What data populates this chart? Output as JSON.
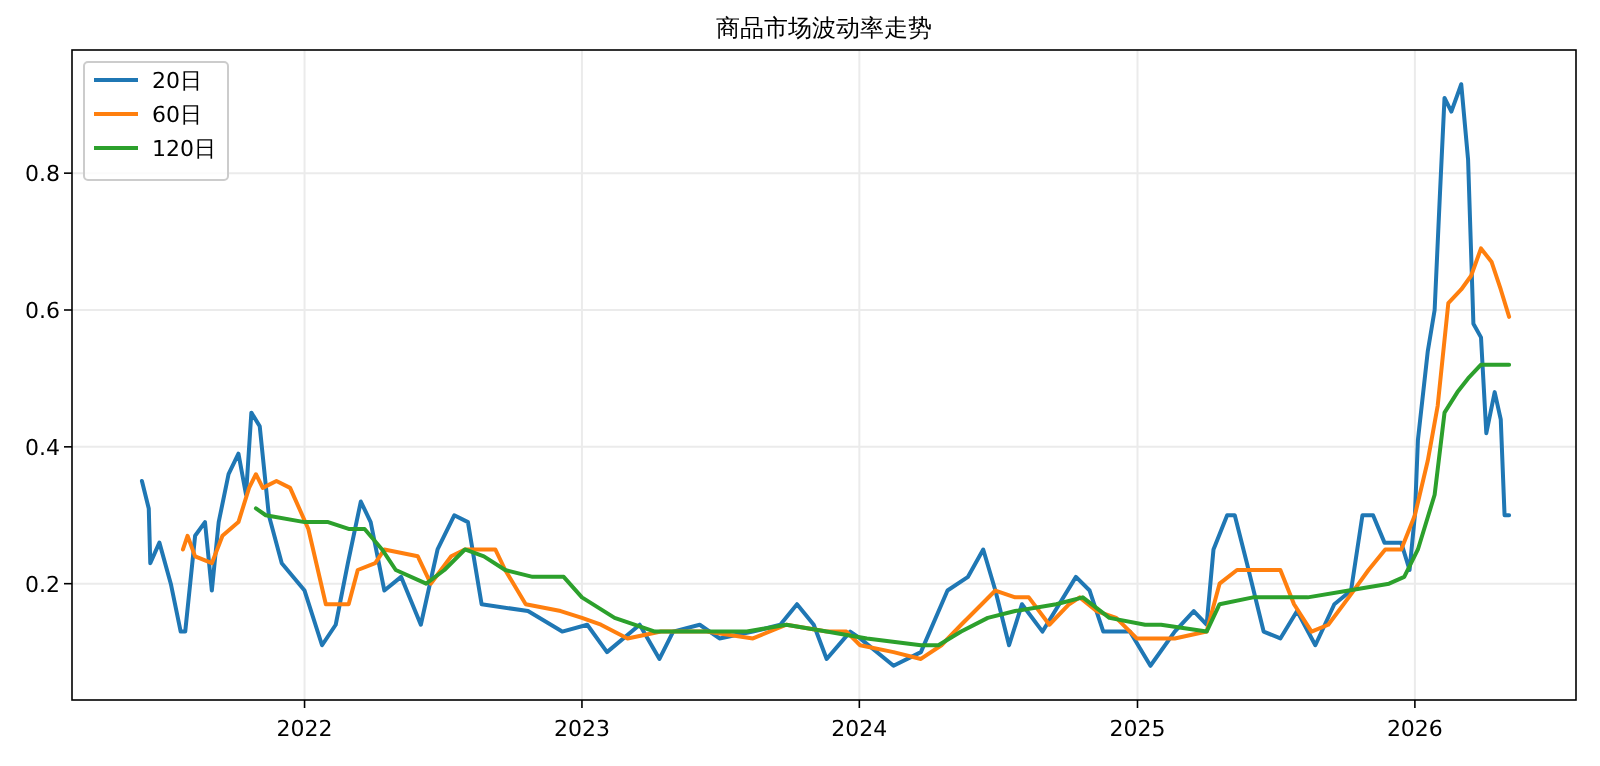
{
  "chart_data": {
    "type": "line",
    "title": "商品市场波动率走势",
    "xlim": [
      "2021-03-01",
      "2026-08-01"
    ],
    "ylim": [
      0.03,
      0.98
    ],
    "xticks": [
      {
        "value": "2022-01-01",
        "label": "2022"
      },
      {
        "value": "2023-01-01",
        "label": "2023"
      },
      {
        "value": "2024-01-01",
        "label": "2024"
      },
      {
        "value": "2025-01-01",
        "label": "2025"
      },
      {
        "value": "2026-01-01",
        "label": "2026"
      }
    ],
    "yticks": [
      0.2,
      0.4,
      0.6,
      0.8
    ],
    "grid": true,
    "legend": "top left",
    "line_style": "solid",
    "marker": "none",
    "series": [
      {
        "name": "20日",
        "color": "#1f77b4",
        "x": [
          "2021-06-01",
          "2021-06-10",
          "2021-06-12",
          "2021-06-24",
          "2021-07-09",
          "2021-07-22",
          "2021-07-28",
          "2021-08-10",
          "2021-08-23",
          "2021-09-01",
          "2021-09-10",
          "2021-09-23",
          "2021-10-06",
          "2021-10-16",
          "2021-10-23",
          "2021-11-03",
          "2021-11-15",
          "2021-12-02",
          "2022-01-01",
          "2022-01-24",
          "2022-02-11",
          "2022-02-27",
          "2022-03-16",
          "2022-03-29",
          "2022-04-16",
          "2022-05-08",
          "2022-06-03",
          "2022-06-25",
          "2022-07-17",
          "2022-08-04",
          "2022-08-22",
          "2022-10-22",
          "2022-12-06",
          "2023-01-08",
          "2023-02-03",
          "2023-03-18",
          "2023-04-13",
          "2023-05-01",
          "2023-06-05",
          "2023-07-01",
          "2023-08-14",
          "2023-09-19",
          "2023-10-11",
          "2023-11-02",
          "2023-11-19",
          "2023-12-20",
          "2024-01-02",
          "2024-02-15",
          "2024-03-22",
          "2024-04-26",
          "2024-05-23",
          "2024-06-12",
          "2024-06-28",
          "2024-07-16",
          "2024-08-02",
          "2024-08-29",
          "2024-10-12",
          "2024-10-30",
          "2024-11-17",
          "2024-12-22",
          "2025-01-18",
          "2025-02-19",
          "2025-03-16",
          "2025-04-02",
          "2025-04-11",
          "2025-04-29",
          "2025-05-09",
          "2025-05-25",
          "2025-06-16",
          "2025-07-08",
          "2025-07-30",
          "2025-08-23",
          "2025-09-17",
          "2025-10-09",
          "2025-10-24",
          "2025-11-07",
          "2025-11-22",
          "2025-12-14",
          "2025-12-25",
          "2026-01-01",
          "2026-01-05",
          "2026-01-18",
          "2026-01-27",
          "2026-02-03",
          "2026-02-09",
          "2026-02-18",
          "2026-03-03",
          "2026-03-12",
          "2026-03-19",
          "2026-03-29",
          "2026-04-05",
          "2026-04-16",
          "2026-04-24",
          "2026-04-29",
          "2026-05-05"
        ],
        "values": [
          0.35,
          0.31,
          0.23,
          0.26,
          0.2,
          0.13,
          0.13,
          0.27,
          0.29,
          0.19,
          0.29,
          0.36,
          0.39,
          0.33,
          0.45,
          0.43,
          0.3,
          0.23,
          0.19,
          0.11,
          0.14,
          0.23,
          0.32,
          0.29,
          0.19,
          0.21,
          0.14,
          0.25,
          0.3,
          0.29,
          0.17,
          0.16,
          0.13,
          0.14,
          0.1,
          0.14,
          0.09,
          0.13,
          0.14,
          0.12,
          0.13,
          0.14,
          0.17,
          0.14,
          0.09,
          0.13,
          0.12,
          0.08,
          0.1,
          0.19,
          0.21,
          0.25,
          0.19,
          0.11,
          0.17,
          0.13,
          0.21,
          0.19,
          0.13,
          0.13,
          0.08,
          0.13,
          0.16,
          0.14,
          0.25,
          0.3,
          0.3,
          0.23,
          0.13,
          0.12,
          0.16,
          0.11,
          0.17,
          0.19,
          0.3,
          0.3,
          0.26,
          0.26,
          0.22,
          0.3,
          0.41,
          0.54,
          0.6,
          0.77,
          0.91,
          0.89,
          0.93,
          0.82,
          0.58,
          0.56,
          0.42,
          0.48,
          0.44,
          0.3,
          0.3
        ]
      },
      {
        "name": "60日",
        "color": "#ff7f0e",
        "x": [
          "2021-07-25",
          "2021-07-31",
          "2021-08-10",
          "2021-09-01",
          "2021-09-15",
          "2021-10-06",
          "2021-10-20",
          "2021-10-29",
          "2021-11-07",
          "2021-11-25",
          "2021-12-13",
          "2022-01-06",
          "2022-01-29",
          "2022-02-28",
          "2022-03-12",
          "2022-04-04",
          "2022-04-16",
          "2022-05-30",
          "2022-06-16",
          "2022-07-13",
          "2022-07-31",
          "2022-09-09",
          "2022-09-22",
          "2022-10-19",
          "2022-12-04",
          "2023-01-01",
          "2023-01-26",
          "2023-03-02",
          "2023-04-15",
          "2023-06-14",
          "2023-08-14",
          "2023-09-27",
          "2023-11-19",
          "2023-12-15",
          "2024-01-02",
          "2024-02-15",
          "2024-03-22",
          "2024-04-18",
          "2024-05-14",
          "2024-06-10",
          "2024-06-28",
          "2024-07-24",
          "2024-08-11",
          "2024-09-07",
          "2024-10-03",
          "2024-10-17",
          "2024-11-08",
          "2024-12-04",
          "2024-12-31",
          "2025-01-11",
          "2025-02-19",
          "2025-04-02",
          "2025-04-19",
          "2025-05-12",
          "2025-06-12",
          "2025-07-08",
          "2025-07-26",
          "2025-08-18",
          "2025-09-09",
          "2025-10-06",
          "2025-11-01",
          "2025-11-23",
          "2025-12-14",
          "2026-01-01",
          "2026-01-18",
          "2026-01-31",
          "2026-02-14",
          "2026-03-03",
          "2026-03-16",
          "2026-03-29",
          "2026-04-12",
          "2026-04-24",
          "2026-05-05"
        ],
        "values": [
          0.25,
          0.27,
          0.24,
          0.23,
          0.27,
          0.29,
          0.34,
          0.36,
          0.34,
          0.35,
          0.34,
          0.28,
          0.17,
          0.17,
          0.22,
          0.23,
          0.25,
          0.24,
          0.2,
          0.24,
          0.25,
          0.25,
          0.22,
          0.17,
          0.16,
          0.15,
          0.14,
          0.12,
          0.13,
          0.13,
          0.12,
          0.14,
          0.13,
          0.13,
          0.11,
          0.1,
          0.09,
          0.11,
          0.14,
          0.17,
          0.19,
          0.18,
          0.18,
          0.14,
          0.17,
          0.18,
          0.16,
          0.15,
          0.12,
          0.12,
          0.12,
          0.13,
          0.2,
          0.22,
          0.22,
          0.22,
          0.17,
          0.13,
          0.14,
          0.18,
          0.22,
          0.25,
          0.25,
          0.3,
          0.38,
          0.46,
          0.61,
          0.63,
          0.65,
          0.69,
          0.67,
          0.63,
          0.59
        ]
      },
      {
        "name": "120日",
        "color": "#2ca02c",
        "x": [
          "2021-10-29",
          "2021-11-11",
          "2022-01-01",
          "2022-02-01",
          "2022-02-28",
          "2022-03-21",
          "2022-04-13",
          "2022-05-01",
          "2022-06-10",
          "2022-07-04",
          "2022-07-31",
          "2022-08-25",
          "2022-09-22",
          "2022-10-28",
          "2022-12-08",
          "2023-01-01",
          "2023-02-13",
          "2023-04-07",
          "2023-05-30",
          "2023-08-06",
          "2023-09-27",
          "2023-11-19",
          "2024-01-11",
          "2024-03-22",
          "2024-04-14",
          "2024-05-14",
          "2024-06-18",
          "2024-07-24",
          "2024-09-16",
          "2024-10-21",
          "2024-11-25",
          "2025-01-11",
          "2025-02-01",
          "2025-04-02",
          "2025-04-19",
          "2025-06-02",
          "2025-08-13",
          "2025-10-06",
          "2025-11-28",
          "2025-12-18",
          "2026-01-05",
          "2026-01-27",
          "2026-02-09",
          "2026-02-26",
          "2026-03-12",
          "2026-03-29",
          "2026-05-05"
        ],
        "values": [
          0.31,
          0.3,
          0.29,
          0.29,
          0.28,
          0.28,
          0.25,
          0.22,
          0.2,
          0.22,
          0.25,
          0.24,
          0.22,
          0.21,
          0.21,
          0.18,
          0.15,
          0.13,
          0.13,
          0.13,
          0.14,
          0.13,
          0.12,
          0.11,
          0.11,
          0.13,
          0.15,
          0.16,
          0.17,
          0.18,
          0.15,
          0.14,
          0.14,
          0.13,
          0.17,
          0.18,
          0.18,
          0.19,
          0.2,
          0.21,
          0.25,
          0.33,
          0.45,
          0.48,
          0.5,
          0.52,
          0.52
        ]
      }
    ]
  }
}
